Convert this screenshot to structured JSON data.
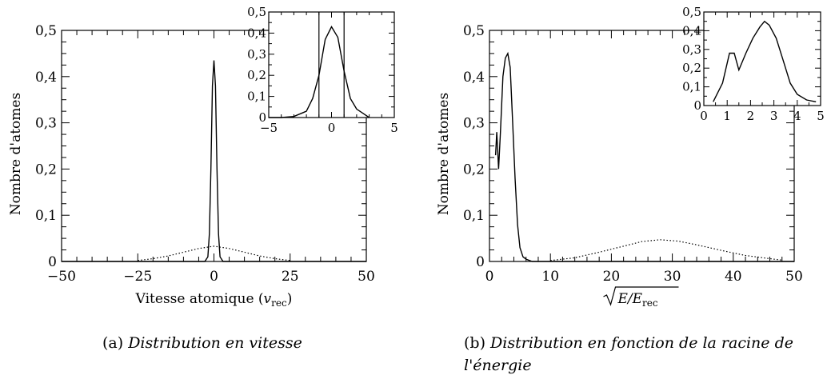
{
  "chart_data": [
    {
      "type": "line",
      "xlabel_main": "Vitesse atomique (",
      "xlabel_sym": "v",
      "xlabel_sub": "rec",
      "xlabel_close": ")",
      "ylabel": "Nombre d'atomes",
      "xlim": [
        -50,
        50
      ],
      "ylim": [
        0,
        0.5
      ],
      "xticks": [
        "−50",
        "−25",
        "0",
        "25",
        "50"
      ],
      "yticks": [
        "0",
        "0,1",
        "0,2",
        "0,3",
        "0,4",
        "0,5"
      ],
      "series": [
        {
          "style": "solid",
          "x": [
            -50,
            -3,
            -2,
            -1.5,
            -1,
            -0.5,
            0,
            0.5,
            1,
            1.5,
            2,
            3,
            50
          ],
          "y": [
            0,
            0,
            0.01,
            0.06,
            0.2,
            0.38,
            0.435,
            0.38,
            0.2,
            0.06,
            0.01,
            0,
            0
          ]
        },
        {
          "style": "dotted",
          "x": [
            -25,
            -20,
            -15,
            -10,
            -5,
            0,
            5,
            10,
            15,
            20,
            25
          ],
          "y": [
            0.002,
            0.006,
            0.012,
            0.02,
            0.028,
            0.033,
            0.028,
            0.02,
            0.012,
            0.006,
            0.002
          ]
        }
      ],
      "inset": {
        "xlim": [
          -5,
          5
        ],
        "ylim": [
          0,
          0.5
        ],
        "xticks": [
          "−5",
          "0",
          "5"
        ],
        "yticks": [
          "0",
          "0,1",
          "0,2",
          "0,3",
          "0,4",
          "0,5"
        ],
        "vlines": [
          -1,
          1
        ],
        "series": [
          {
            "style": "solid",
            "x": [
              -5,
              -4,
              -3,
              -2,
              -1.5,
              -1,
              -0.5,
              0,
              0.5,
              1,
              1.5,
              2,
              2.5,
              3
            ],
            "y": [
              0,
              0,
              0.005,
              0.03,
              0.09,
              0.2,
              0.37,
              0.43,
              0.38,
              0.22,
              0.09,
              0.04,
              0.02,
              0
            ]
          }
        ]
      }
    },
    {
      "type": "line",
      "xlabel_main": "E/E",
      "xlabel_sub": "rec",
      "ylabel": "Nombre d'atomes",
      "xlim": [
        0,
        50
      ],
      "ylim": [
        0,
        0.5
      ],
      "xticks": [
        "0",
        "10",
        "20",
        "30",
        "40",
        "50"
      ],
      "yticks": [
        "0",
        "0,1",
        "0,2",
        "0,3",
        "0,4",
        "0,5"
      ],
      "series": [
        {
          "style": "solid",
          "x": [
            1.0,
            1.2,
            1.5,
            1.8,
            2.2,
            2.6,
            3.0,
            3.4,
            3.8,
            4.2,
            4.6,
            5.0,
            5.5,
            6,
            7,
            50
          ],
          "y": [
            0.23,
            0.28,
            0.2,
            0.28,
            0.4,
            0.44,
            0.45,
            0.42,
            0.3,
            0.18,
            0.08,
            0.03,
            0.01,
            0.005,
            0,
            0
          ]
        },
        {
          "style": "dotted",
          "x": [
            10,
            14,
            18,
            22,
            25,
            28,
            31,
            34,
            38,
            42,
            46,
            48
          ],
          "y": [
            0.002,
            0.008,
            0.02,
            0.033,
            0.043,
            0.047,
            0.044,
            0.036,
            0.024,
            0.013,
            0.006,
            0.003
          ]
        }
      ],
      "inset": {
        "xlim": [
          0,
          5
        ],
        "ylim": [
          0,
          0.5
        ],
        "xticks": [
          "0",
          "1",
          "2",
          "3",
          "4",
          "5"
        ],
        "yticks": [
          "0",
          "0,1",
          "0,2",
          "0,3",
          "0,4",
          "0,5"
        ],
        "series": [
          {
            "style": "solid",
            "x": [
              0.4,
              0.8,
              1.1,
              1.3,
              1.5,
              1.8,
              2.1,
              2.4,
              2.6,
              2.8,
              3.1,
              3.4,
              3.7,
              4.0,
              4.4,
              4.8
            ],
            "y": [
              0.02,
              0.12,
              0.28,
              0.28,
              0.19,
              0.28,
              0.36,
              0.42,
              0.45,
              0.43,
              0.36,
              0.24,
              0.12,
              0.06,
              0.03,
              0.02
            ]
          }
        ]
      }
    }
  ],
  "captions": {
    "a_label": "(a)",
    "a_text": "Distribution en vitesse",
    "b_label": "(b)",
    "b_text": "Distribution en fonction de la racine de l'énergie"
  }
}
